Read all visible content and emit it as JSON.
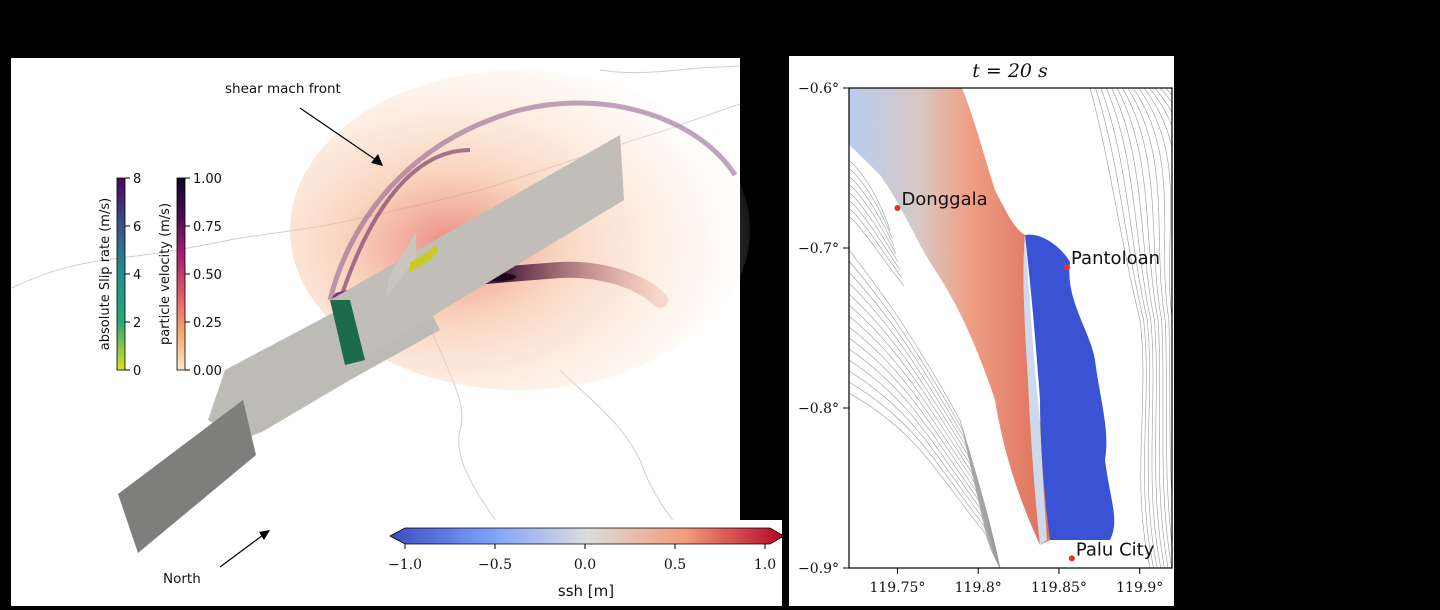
{
  "rupture_panel": {
    "annotations": {
      "shear_front": "shear mach front",
      "north": "North"
    },
    "slip_colorbar": {
      "label": "absolute Slip rate (m/s)",
      "ticks": [
        "0",
        "2",
        "4",
        "6",
        "8"
      ],
      "colors": [
        "#d9e021",
        "#2aa876",
        "#21908c",
        "#3b528b",
        "#46085c"
      ]
    },
    "velocity_colorbar": {
      "label": "particle velocity (m/s)",
      "ticks": [
        "0.00",
        "0.25",
        "0.50",
        "0.75",
        "1.00"
      ],
      "colors": [
        "#fde8c3",
        "#f8a56d",
        "#e2566b",
        "#a3206f",
        "#4a0c4e",
        "#0d0826"
      ]
    }
  },
  "ssh_colorbar": {
    "label": "ssh [m]",
    "ticks": [
      "−1.0",
      "−0.5",
      "0.0",
      "0.5",
      "1.0"
    ],
    "colors": [
      "#3b4cc0",
      "#7b9ff9",
      "#dddddd",
      "#f49a7b",
      "#b40426"
    ]
  },
  "tsunami_panel": {
    "title": "t = 20 s",
    "y_ticks": [
      "−0.6°",
      "−0.7°",
      "−0.8°",
      "−0.9°"
    ],
    "x_ticks": [
      "119.75°",
      "119.8°",
      "119.85°",
      "119.9°"
    ],
    "places": [
      {
        "name": "Donggala",
        "lon": 119.75,
        "lat": -0.675
      },
      {
        "name": "Pantoloan",
        "lon": 119.855,
        "lat": -0.712
      },
      {
        "name": "Palu City",
        "lon": 119.858,
        "lat": -0.894
      }
    ],
    "place_color": "#e8312f"
  }
}
